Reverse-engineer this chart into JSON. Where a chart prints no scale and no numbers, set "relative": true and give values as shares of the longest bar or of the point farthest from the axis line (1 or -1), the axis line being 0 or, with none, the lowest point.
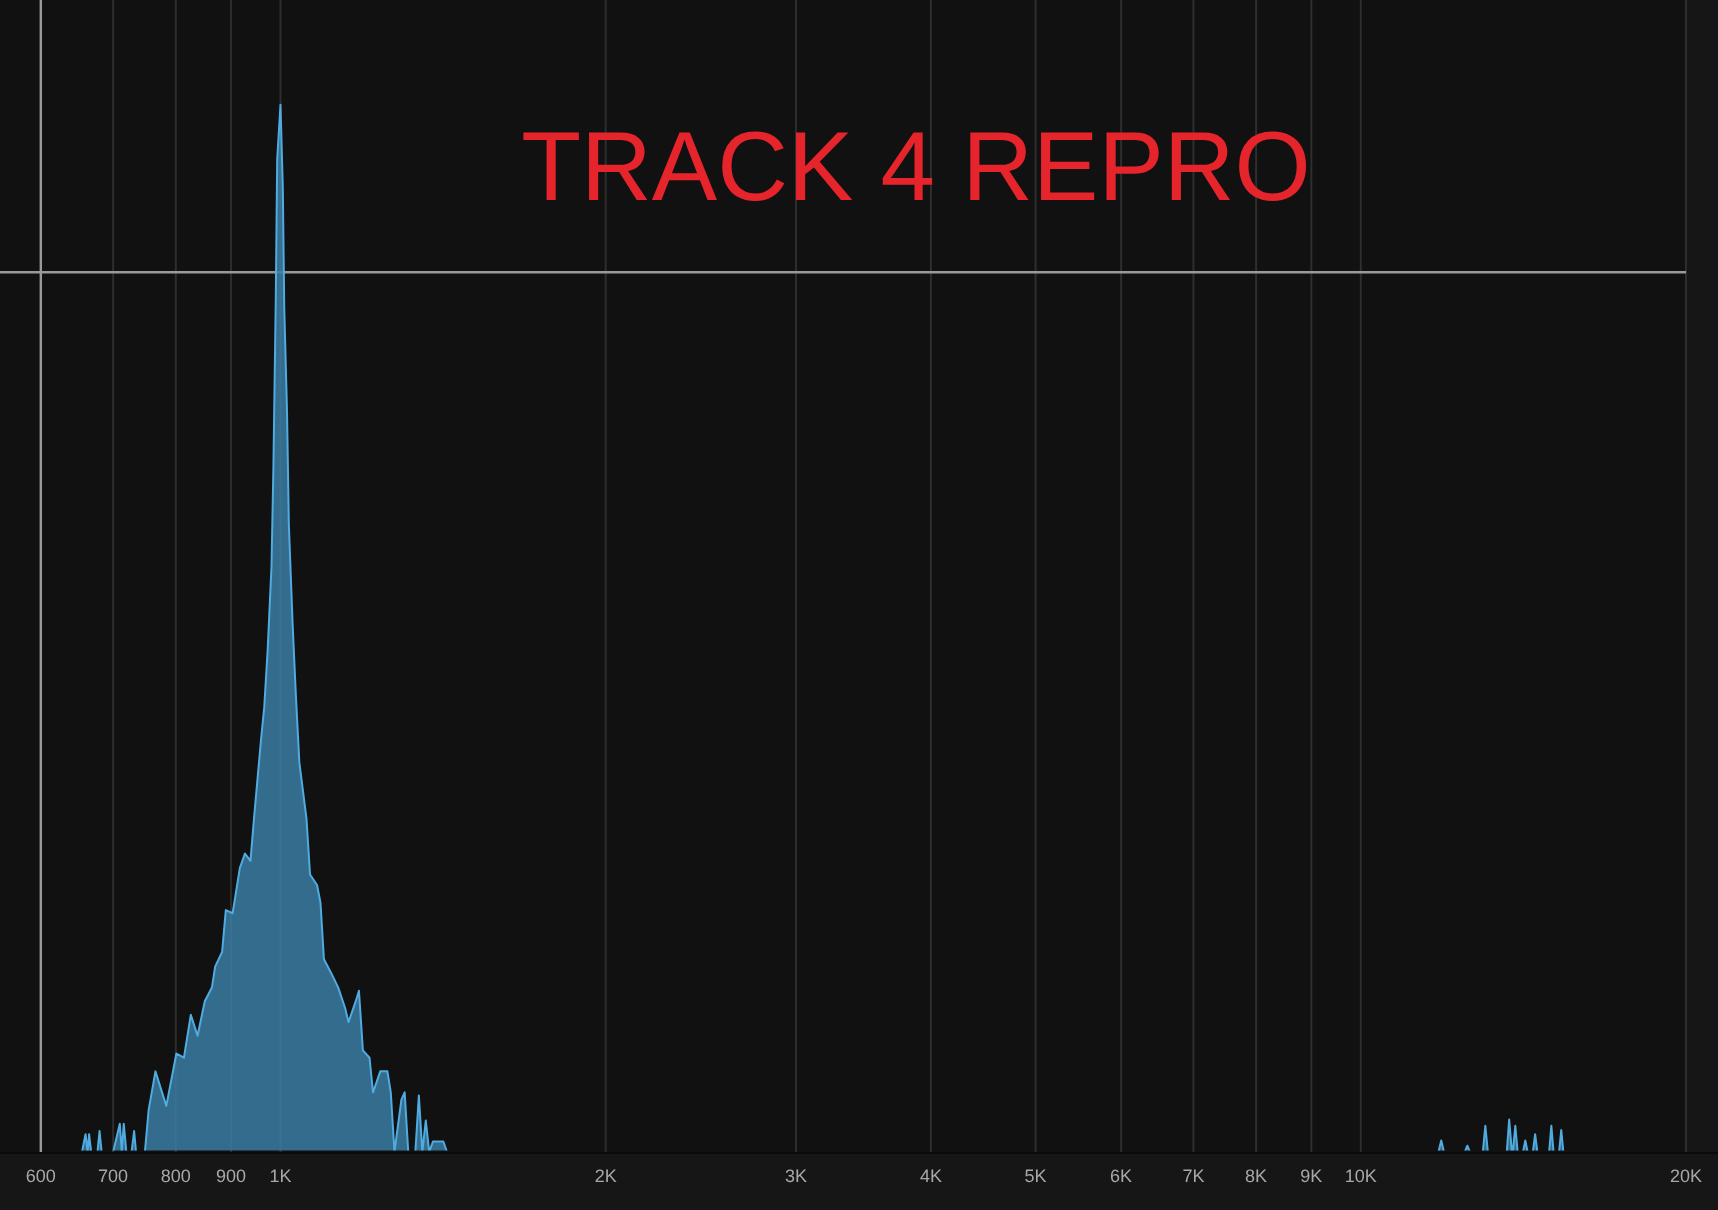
{
  "chart_data": {
    "type": "area",
    "title": "TRACK 4 REPRO",
    "relative": true,
    "log": "x",
    "xlim": [
      550,
      20000
    ],
    "xticks": [
      600,
      700,
      800,
      900,
      {
        "value": 1000,
        "label": "1K"
      },
      {
        "value": 2000,
        "label": "2K"
      },
      {
        "value": 3000,
        "label": "3K"
      },
      {
        "value": 4000,
        "label": "4K"
      },
      {
        "value": 5000,
        "label": "5K"
      },
      {
        "value": 6000,
        "label": "6K"
      },
      {
        "value": 7000,
        "label": "7K"
      },
      {
        "value": 8000,
        "label": "8K"
      },
      {
        "value": 9000,
        "label": "9K"
      },
      {
        "value": 10000,
        "label": "10K"
      },
      {
        "value": 20000,
        "label": "20K"
      }
    ],
    "grid": "x",
    "ref_lines": [
      {
        "axis": "x",
        "value": 600,
        "color": "#9a9a9a"
      },
      {
        "axis": "y",
        "value": 0.84,
        "color": "#9a9a9a"
      }
    ],
    "color": "#3a7ca3",
    "x": [
      655,
      660,
      663,
      665,
      668,
      677,
      680,
      683,
      700,
      710,
      713,
      716,
      720,
      728,
      732,
      735,
      749,
      755,
      766,
      784,
      801,
      814,
      826,
      838,
      851,
      864,
      870,
      883,
      890,
      903,
      917,
      927,
      938,
      945,
      959,
      966,
      973,
      981,
      985,
      990,
      993,
      1000,
      1005,
      1008,
      1014,
      1018,
      1026,
      1033,
      1041,
      1049,
      1057,
      1065,
      1081,
      1089,
      1097,
      1114,
      1131,
      1148,
      1156,
      1174,
      1182,
      1192,
      1209,
      1218,
      1237,
      1256,
      1265,
      1275,
      1294,
      1303,
      1313,
      1333,
      1343,
      1353,
      1363,
      1373,
      1384,
      1415,
      1426,
      11800,
      11870,
      11940,
      12480,
      12550,
      12620,
      12970,
      13040,
      13110,
      13650,
      13720,
      13800,
      13830,
      13900,
      13970,
      14130,
      14200,
      14270,
      14430,
      14500,
      14570,
      14940,
      15010,
      15080,
      15260,
      15330,
      15400
    ],
    "values": [
      0,
      0.017,
      0,
      0.017,
      0,
      0,
      0.02,
      0,
      0,
      0.027,
      0,
      0.027,
      0,
      0,
      0.02,
      0,
      0,
      0.04,
      0.077,
      0.044,
      0.094,
      0.09,
      0.131,
      0.111,
      0.144,
      0.157,
      0.177,
      0.191,
      0.231,
      0.228,
      0.271,
      0.285,
      0.278,
      0.318,
      0.392,
      0.425,
      0.479,
      0.559,
      0.653,
      0.814,
      0.948,
      1,
      0.921,
      0.807,
      0.707,
      0.599,
      0.506,
      0.439,
      0.372,
      0.345,
      0.318,
      0.265,
      0.255,
      0.238,
      0.184,
      0.171,
      0.157,
      0.137,
      0.124,
      0.144,
      0.154,
      0.097,
      0.09,
      0.057,
      0.077,
      0.077,
      0.057,
      0,
      0.05,
      0.057,
      0,
      0,
      0.054,
      0,
      0.03,
      0,
      0.01,
      0.01,
      0,
      0,
      0.011,
      0,
      0,
      0.006,
      0,
      0,
      0.025,
      0,
      0,
      0.031,
      0,
      0,
      0.025,
      0,
      0,
      0.011,
      0,
      0,
      0.017,
      0,
      0,
      0.025,
      0,
      0,
      0.021,
      0
    ]
  }
}
